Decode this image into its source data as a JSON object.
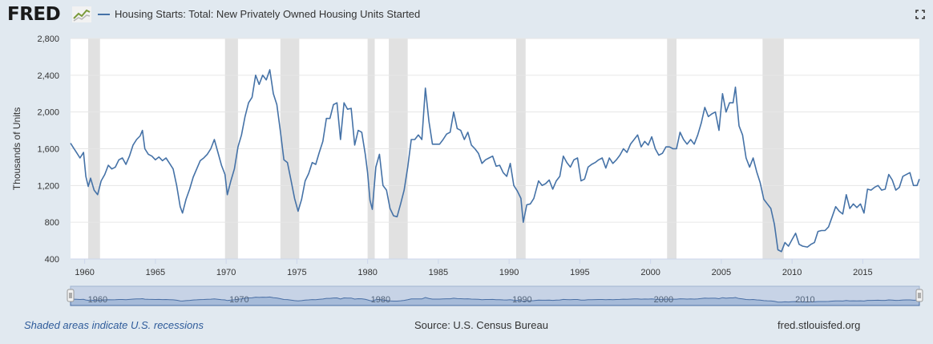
{
  "header": {
    "logo_text": "FRED",
    "logo_icon": "line-chart-mark-icon",
    "expand_icon": "fullscreen-expand-icon"
  },
  "footer": {
    "recession_note": "Shaded areas indicate U.S. recessions",
    "source": "Source: U.S. Census Bureau",
    "site": "fred.stlouisfed.org"
  },
  "colors": {
    "series": "#4572a7",
    "recession": "#e1e1e1",
    "background": "#e1e9f0",
    "plot_bg": "#ffffff",
    "navigator_fill": "#a6bbd9",
    "navigator_line": "#4a6fa5"
  },
  "chart_data": {
    "type": "line",
    "title": "Housing Starts: Total: New Privately Owned Housing Units Started",
    "xlabel": "",
    "ylabel": "Thousands of Units",
    "xlim": [
      "1959-01",
      "2019-01"
    ],
    "ylim": [
      400,
      2800
    ],
    "yticks": [
      400,
      800,
      1200,
      1600,
      2000,
      2400,
      2800
    ],
    "ytick_labels": [
      "400",
      "800",
      "1,200",
      "1,600",
      "2,000",
      "2,400",
      "2,800"
    ],
    "xticks": [
      1960,
      1965,
      1970,
      1975,
      1980,
      1985,
      1990,
      1995,
      2000,
      2005,
      2010,
      2015
    ],
    "navigator_labels": [
      {
        "year": 1960,
        "label": "1960"
      },
      {
        "year": 1970,
        "label": "1970"
      },
      {
        "year": 1980,
        "label": "1980"
      },
      {
        "year": 1990,
        "label": "1990"
      },
      {
        "year": 2000,
        "label": "2000"
      },
      {
        "year": 2010,
        "label": "2010"
      }
    ],
    "grid": "horizontal",
    "recessions": [
      [
        "1960-04",
        "1961-02"
      ],
      [
        "1969-12",
        "1970-11"
      ],
      [
        "1973-11",
        "1975-03"
      ],
      [
        "1980-01",
        "1980-07"
      ],
      [
        "1981-07",
        "1982-11"
      ],
      [
        "1990-07",
        "1991-03"
      ],
      [
        "2001-03",
        "2001-11"
      ],
      [
        "2007-12",
        "2009-06"
      ]
    ],
    "series": [
      {
        "name": "Housing Starts: Total: New Privately Owned Housing Units Started",
        "points": [
          [
            "1959-01",
            1660
          ],
          [
            "1959-03",
            1620
          ],
          [
            "1959-06",
            1560
          ],
          [
            "1959-09",
            1500
          ],
          [
            "1959-12",
            1560
          ],
          [
            "1960-02",
            1300
          ],
          [
            "1960-04",
            1190
          ],
          [
            "1960-06",
            1280
          ],
          [
            "1960-09",
            1150
          ],
          [
            "1960-12",
            1100
          ],
          [
            "1961-03",
            1250
          ],
          [
            "1961-06",
            1320
          ],
          [
            "1961-09",
            1420
          ],
          [
            "1961-12",
            1380
          ],
          [
            "1962-03",
            1400
          ],
          [
            "1962-06",
            1480
          ],
          [
            "1962-09",
            1500
          ],
          [
            "1962-12",
            1430
          ],
          [
            "1963-03",
            1520
          ],
          [
            "1963-06",
            1640
          ],
          [
            "1963-09",
            1700
          ],
          [
            "1963-12",
            1740
          ],
          [
            "1964-02",
            1800
          ],
          [
            "1964-04",
            1600
          ],
          [
            "1964-07",
            1540
          ],
          [
            "1964-10",
            1520
          ],
          [
            "1965-01",
            1480
          ],
          [
            "1965-04",
            1510
          ],
          [
            "1965-07",
            1470
          ],
          [
            "1965-10",
            1500
          ],
          [
            "1966-01",
            1440
          ],
          [
            "1966-04",
            1380
          ],
          [
            "1966-07",
            1200
          ],
          [
            "1966-10",
            970
          ],
          [
            "1966-12",
            900
          ],
          [
            "1967-03",
            1050
          ],
          [
            "1967-06",
            1160
          ],
          [
            "1967-09",
            1290
          ],
          [
            "1967-12",
            1380
          ],
          [
            "1968-03",
            1470
          ],
          [
            "1968-06",
            1500
          ],
          [
            "1968-09",
            1540
          ],
          [
            "1968-12",
            1600
          ],
          [
            "1969-03",
            1700
          ],
          [
            "1969-06",
            1560
          ],
          [
            "1969-09",
            1420
          ],
          [
            "1969-12",
            1320
          ],
          [
            "1970-02",
            1100
          ],
          [
            "1970-05",
            1250
          ],
          [
            "1970-08",
            1380
          ],
          [
            "1970-11",
            1620
          ],
          [
            "1971-02",
            1750
          ],
          [
            "1971-05",
            1950
          ],
          [
            "1971-08",
            2100
          ],
          [
            "1971-11",
            2160
          ],
          [
            "1972-02",
            2400
          ],
          [
            "1972-05",
            2300
          ],
          [
            "1972-08",
            2400
          ],
          [
            "1972-11",
            2350
          ],
          [
            "1973-02",
            2460
          ],
          [
            "1973-05",
            2200
          ],
          [
            "1973-08",
            2080
          ],
          [
            "1973-11",
            1790
          ],
          [
            "1974-02",
            1480
          ],
          [
            "1974-05",
            1450
          ],
          [
            "1974-08",
            1260
          ],
          [
            "1974-11",
            1060
          ],
          [
            "1975-02",
            920
          ],
          [
            "1975-05",
            1050
          ],
          [
            "1975-08",
            1250
          ],
          [
            "1975-11",
            1330
          ],
          [
            "1976-02",
            1450
          ],
          [
            "1976-05",
            1430
          ],
          [
            "1976-08",
            1560
          ],
          [
            "1976-11",
            1680
          ],
          [
            "1977-02",
            1930
          ],
          [
            "1977-05",
            1930
          ],
          [
            "1977-08",
            2080
          ],
          [
            "1977-11",
            2100
          ],
          [
            "1978-02",
            1700
          ],
          [
            "1978-05",
            2100
          ],
          [
            "1978-08",
            2030
          ],
          [
            "1978-11",
            2040
          ],
          [
            "1979-02",
            1640
          ],
          [
            "1979-05",
            1800
          ],
          [
            "1979-08",
            1780
          ],
          [
            "1979-11",
            1540
          ],
          [
            "1980-01",
            1340
          ],
          [
            "1980-03",
            1040
          ],
          [
            "1980-05",
            940
          ],
          [
            "1980-08",
            1400
          ],
          [
            "1980-11",
            1540
          ],
          [
            "1981-02",
            1200
          ],
          [
            "1981-05",
            1150
          ],
          [
            "1981-08",
            950
          ],
          [
            "1981-11",
            870
          ],
          [
            "1982-02",
            860
          ],
          [
            "1982-05",
            1000
          ],
          [
            "1982-08",
            1150
          ],
          [
            "1982-11",
            1400
          ],
          [
            "1983-02",
            1700
          ],
          [
            "1983-05",
            1700
          ],
          [
            "1983-08",
            1750
          ],
          [
            "1983-11",
            1700
          ],
          [
            "1984-02",
            2260
          ],
          [
            "1984-05",
            1900
          ],
          [
            "1984-08",
            1650
          ],
          [
            "1984-11",
            1650
          ],
          [
            "1985-02",
            1650
          ],
          [
            "1985-05",
            1700
          ],
          [
            "1985-08",
            1760
          ],
          [
            "1985-11",
            1780
          ],
          [
            "1986-02",
            2000
          ],
          [
            "1986-05",
            1820
          ],
          [
            "1986-08",
            1800
          ],
          [
            "1986-11",
            1700
          ],
          [
            "1987-02",
            1780
          ],
          [
            "1987-05",
            1640
          ],
          [
            "1987-08",
            1600
          ],
          [
            "1987-11",
            1550
          ],
          [
            "1988-02",
            1440
          ],
          [
            "1988-05",
            1480
          ],
          [
            "1988-08",
            1500
          ],
          [
            "1988-11",
            1520
          ],
          [
            "1989-02",
            1410
          ],
          [
            "1989-05",
            1420
          ],
          [
            "1989-08",
            1340
          ],
          [
            "1989-11",
            1300
          ],
          [
            "1990-02",
            1440
          ],
          [
            "1990-05",
            1200
          ],
          [
            "1990-08",
            1140
          ],
          [
            "1990-11",
            1060
          ],
          [
            "1991-01",
            800
          ],
          [
            "1991-04",
            990
          ],
          [
            "1991-07",
            1000
          ],
          [
            "1991-10",
            1060
          ],
          [
            "1992-02",
            1250
          ],
          [
            "1992-05",
            1200
          ],
          [
            "1992-08",
            1220
          ],
          [
            "1992-11",
            1260
          ],
          [
            "1993-02",
            1160
          ],
          [
            "1993-05",
            1250
          ],
          [
            "1993-08",
            1300
          ],
          [
            "1993-11",
            1520
          ],
          [
            "1994-02",
            1450
          ],
          [
            "1994-05",
            1400
          ],
          [
            "1994-08",
            1480
          ],
          [
            "1994-11",
            1500
          ],
          [
            "1995-02",
            1250
          ],
          [
            "1995-05",
            1270
          ],
          [
            "1995-08",
            1400
          ],
          [
            "1995-11",
            1430
          ],
          [
            "1996-02",
            1450
          ],
          [
            "1996-05",
            1480
          ],
          [
            "1996-08",
            1500
          ],
          [
            "1996-11",
            1390
          ],
          [
            "1997-02",
            1500
          ],
          [
            "1997-05",
            1440
          ],
          [
            "1997-08",
            1480
          ],
          [
            "1997-11",
            1530
          ],
          [
            "1998-02",
            1600
          ],
          [
            "1998-05",
            1560
          ],
          [
            "1998-08",
            1650
          ],
          [
            "1998-11",
            1700
          ],
          [
            "1999-02",
            1750
          ],
          [
            "1999-05",
            1620
          ],
          [
            "1999-08",
            1680
          ],
          [
            "1999-11",
            1640
          ],
          [
            "2000-02",
            1730
          ],
          [
            "2000-05",
            1600
          ],
          [
            "2000-08",
            1530
          ],
          [
            "2000-11",
            1550
          ],
          [
            "2001-02",
            1620
          ],
          [
            "2001-05",
            1620
          ],
          [
            "2001-08",
            1600
          ],
          [
            "2001-11",
            1600
          ],
          [
            "2002-02",
            1780
          ],
          [
            "2002-05",
            1700
          ],
          [
            "2002-08",
            1650
          ],
          [
            "2002-11",
            1700
          ],
          [
            "2003-02",
            1650
          ],
          [
            "2003-05",
            1750
          ],
          [
            "2003-08",
            1880
          ],
          [
            "2003-11",
            2050
          ],
          [
            "2004-02",
            1950
          ],
          [
            "2004-05",
            1980
          ],
          [
            "2004-08",
            2000
          ],
          [
            "2004-11",
            1800
          ],
          [
            "2005-02",
            2200
          ],
          [
            "2005-05",
            2000
          ],
          [
            "2005-08",
            2100
          ],
          [
            "2005-11",
            2100
          ],
          [
            "2006-01",
            2270
          ],
          [
            "2006-04",
            1850
          ],
          [
            "2006-07",
            1750
          ],
          [
            "2006-10",
            1500
          ],
          [
            "2007-01",
            1400
          ],
          [
            "2007-04",
            1500
          ],
          [
            "2007-07",
            1350
          ],
          [
            "2007-10",
            1230
          ],
          [
            "2008-01",
            1050
          ],
          [
            "2008-04",
            1000
          ],
          [
            "2008-07",
            950
          ],
          [
            "2008-10",
            780
          ],
          [
            "2009-01",
            500
          ],
          [
            "2009-04",
            480
          ],
          [
            "2009-07",
            580
          ],
          [
            "2009-10",
            540
          ],
          [
            "2010-01",
            610
          ],
          [
            "2010-04",
            680
          ],
          [
            "2010-07",
            560
          ],
          [
            "2010-10",
            540
          ],
          [
            "2011-02",
            530
          ],
          [
            "2011-05",
            560
          ],
          [
            "2011-08",
            580
          ],
          [
            "2011-11",
            700
          ],
          [
            "2012-02",
            710
          ],
          [
            "2012-05",
            710
          ],
          [
            "2012-08",
            750
          ],
          [
            "2012-11",
            860
          ],
          [
            "2013-02",
            970
          ],
          [
            "2013-05",
            920
          ],
          [
            "2013-08",
            890
          ],
          [
            "2013-11",
            1100
          ],
          [
            "2014-02",
            950
          ],
          [
            "2014-05",
            1000
          ],
          [
            "2014-08",
            960
          ],
          [
            "2014-11",
            1000
          ],
          [
            "2015-02",
            900
          ],
          [
            "2015-05",
            1160
          ],
          [
            "2015-08",
            1150
          ],
          [
            "2015-11",
            1180
          ],
          [
            "2016-02",
            1200
          ],
          [
            "2016-05",
            1150
          ],
          [
            "2016-08",
            1160
          ],
          [
            "2016-11",
            1320
          ],
          [
            "2017-02",
            1260
          ],
          [
            "2017-05",
            1150
          ],
          [
            "2017-08",
            1180
          ],
          [
            "2017-11",
            1300
          ],
          [
            "2018-02",
            1320
          ],
          [
            "2018-05",
            1340
          ],
          [
            "2018-08",
            1200
          ],
          [
            "2018-11",
            1200
          ],
          [
            "2019-01",
            1270
          ]
        ]
      }
    ]
  }
}
